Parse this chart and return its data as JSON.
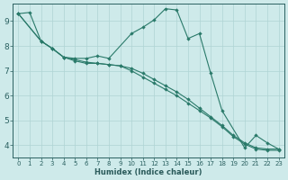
{
  "xlabel": "Humidex (Indice chaleur)",
  "ylabel": "",
  "x_all": [
    0,
    1,
    2,
    3,
    4,
    5,
    6,
    7,
    8,
    9,
    10,
    11,
    12,
    13,
    14,
    15,
    16,
    17,
    18,
    19,
    20,
    21,
    22,
    23
  ],
  "line1_x": [
    0,
    1,
    2,
    3,
    4,
    5,
    6,
    7,
    8,
    10,
    11,
    12,
    13,
    14,
    15,
    16,
    17,
    18,
    20,
    21,
    22,
    23
  ],
  "line1_y": [
    9.3,
    9.35,
    8.2,
    7.9,
    7.55,
    7.5,
    7.5,
    7.6,
    7.5,
    8.5,
    8.75,
    9.05,
    9.5,
    9.45,
    8.3,
    8.5,
    6.9,
    5.4,
    3.9,
    4.4,
    4.1,
    3.85
  ],
  "line2_x": [
    0,
    2,
    3,
    4,
    5,
    6,
    7,
    8,
    9,
    10,
    11,
    12,
    13,
    14,
    15,
    16,
    17,
    18,
    19,
    20,
    21,
    22,
    23
  ],
  "line2_y": [
    9.3,
    8.2,
    7.9,
    7.55,
    7.4,
    7.3,
    7.3,
    7.25,
    7.2,
    7.1,
    6.9,
    6.65,
    6.4,
    6.15,
    5.85,
    5.5,
    5.15,
    4.8,
    4.4,
    4.1,
    3.9,
    3.85,
    3.85
  ],
  "line3_x": [
    0,
    2,
    3,
    4,
    5,
    6,
    7,
    8,
    9,
    10,
    11,
    12,
    13,
    14,
    15,
    16,
    17,
    18,
    19,
    20,
    21,
    22,
    23
  ],
  "line3_y": [
    9.3,
    8.2,
    7.9,
    7.55,
    7.45,
    7.35,
    7.3,
    7.25,
    7.2,
    7.0,
    6.75,
    6.5,
    6.25,
    6.0,
    5.7,
    5.4,
    5.1,
    4.75,
    4.35,
    4.05,
    3.85,
    3.8,
    3.8
  ],
  "bg_color": "#ceeaea",
  "grid_color": "#afd4d4",
  "line_color": "#2a7a6a",
  "tick_color": "#2a6060",
  "ylim": [
    3.5,
    9.7
  ],
  "yticks": [
    4,
    5,
    6,
    7,
    8,
    9
  ],
  "font_color": "#2a5a5a",
  "xlabel_fontsize": 6.0,
  "xtick_fontsize": 5.0,
  "ytick_fontsize": 6.5,
  "lw": 0.8,
  "ms": 2.2
}
